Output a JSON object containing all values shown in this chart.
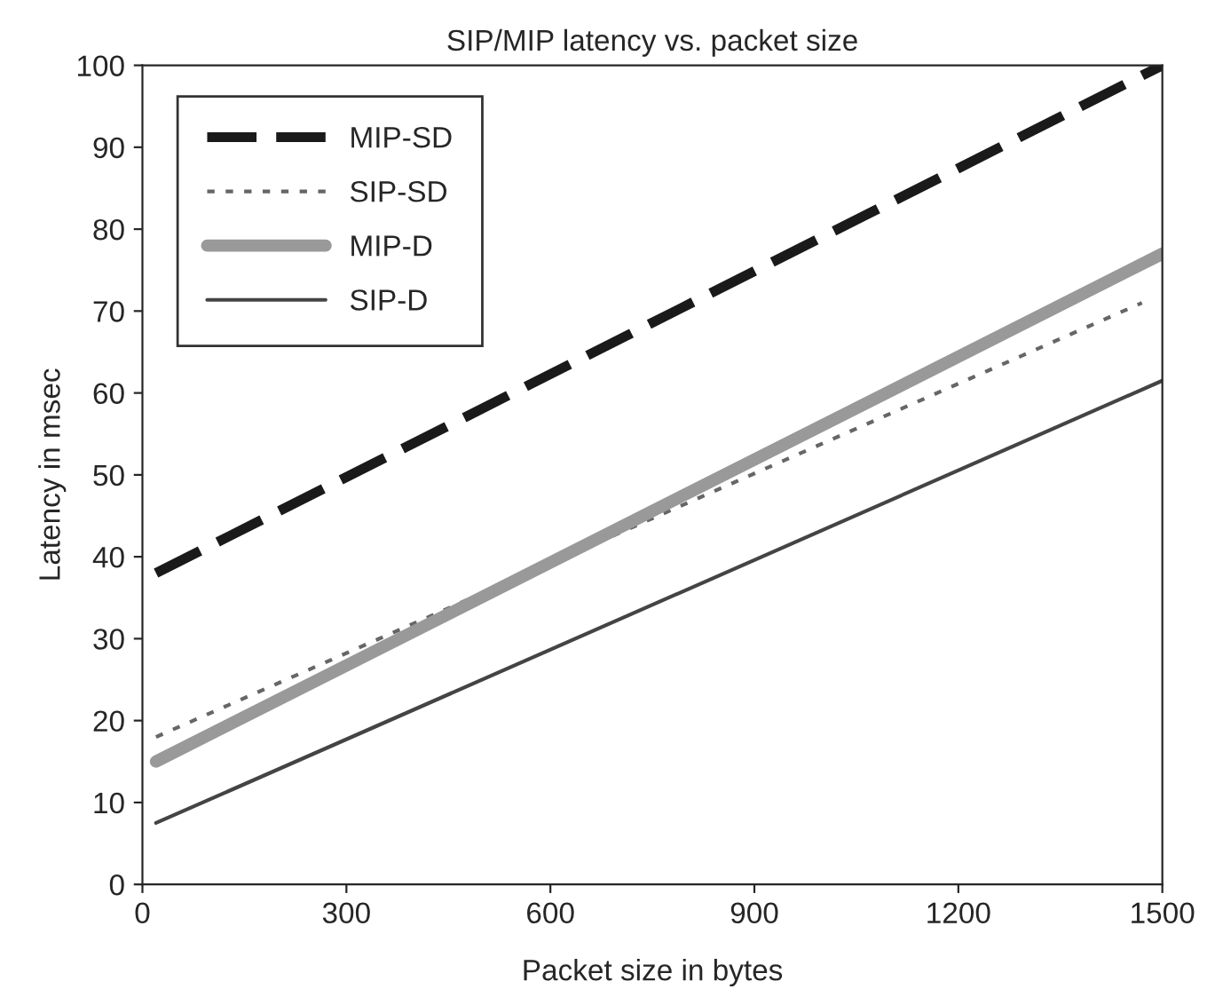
{
  "chart_data": {
    "type": "line",
    "title": "SIP/MIP latency vs. packet size",
    "xlabel": "Packet size in bytes",
    "ylabel": "Latency in msec",
    "xlim": [
      0,
      1500
    ],
    "xticks": [
      0,
      300,
      600,
      900,
      1200,
      1500
    ],
    "ylim": [
      0,
      100
    ],
    "yticks": [
      0,
      10,
      20,
      30,
      40,
      50,
      60,
      70,
      80,
      90,
      100
    ],
    "grid": false,
    "legend": "top left",
    "series": [
      {
        "name": "MIP-SD",
        "color": "#1a1a1a",
        "line_style": "dashed",
        "x": [
          20,
          1500
        ],
        "values": [
          38,
          100
        ]
      },
      {
        "name": "SIP-SD",
        "color": "#666666",
        "line_style": "dotted",
        "x": [
          20,
          1470
        ],
        "values": [
          18,
          71
        ]
      },
      {
        "name": "MIP-D",
        "color": "#999999",
        "line_style": "solid",
        "x": [
          20,
          1500
        ],
        "values": [
          15,
          77
        ]
      },
      {
        "name": "SIP-D",
        "color": "#444444",
        "line_style": "solid",
        "x": [
          20,
          1500
        ],
        "values": [
          7.5,
          61.5
        ]
      }
    ]
  }
}
